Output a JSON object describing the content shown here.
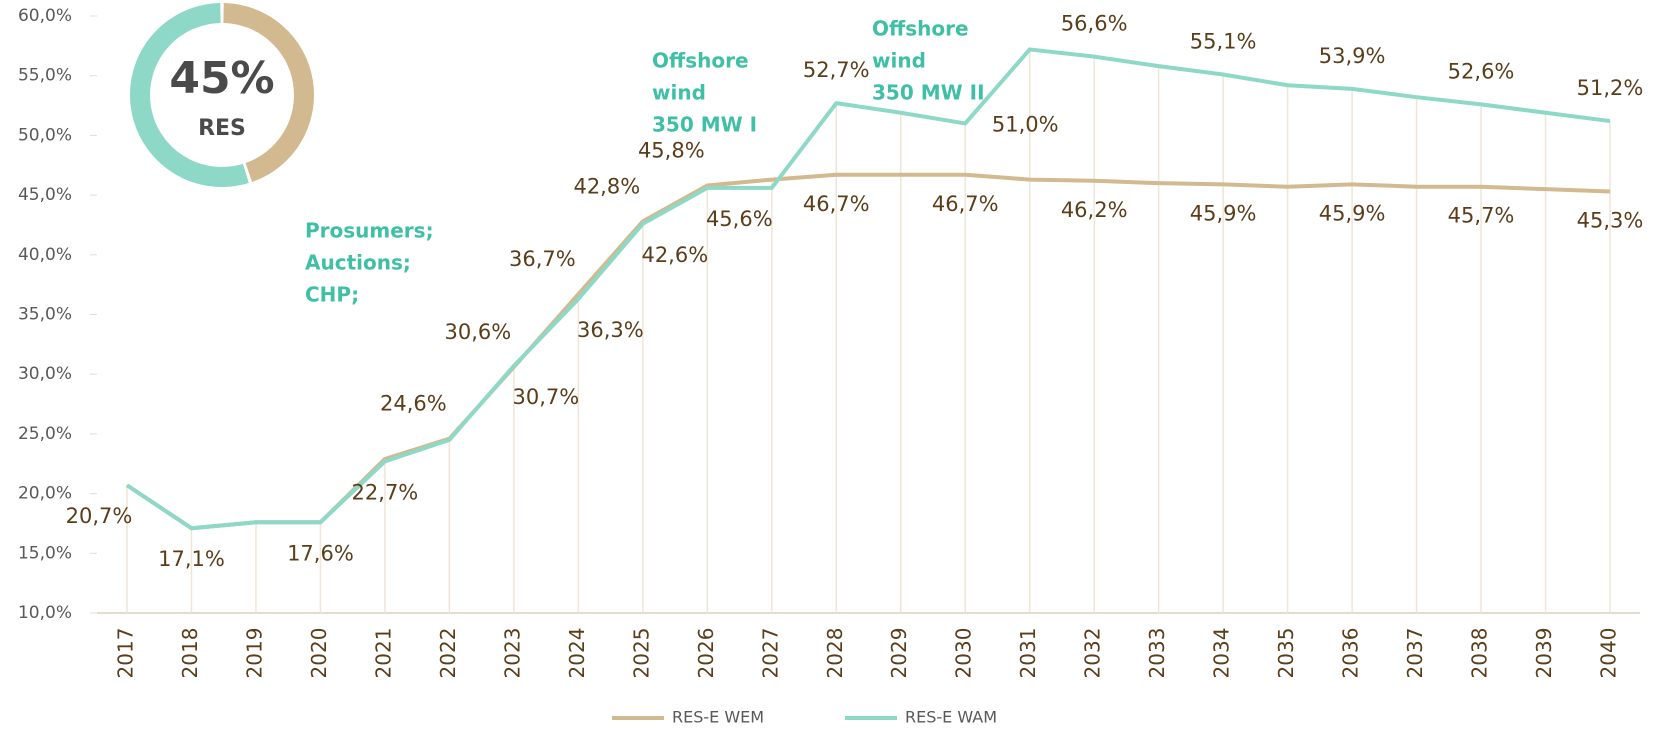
{
  "chart_data": {
    "type": "line",
    "categories": [
      "2017",
      "2018",
      "2019",
      "2020",
      "2021",
      "2022",
      "2023",
      "2024",
      "2025",
      "2026",
      "2027",
      "2028",
      "2029",
      "2030",
      "2031",
      "2032",
      "2033",
      "2034",
      "2035",
      "2036",
      "2037",
      "2038",
      "2039",
      "2040"
    ],
    "series": [
      {
        "name": "RES-E WEM",
        "color": "#d2b98f",
        "values": [
          20.7,
          17.1,
          17.6,
          17.6,
          22.9,
          24.6,
          30.6,
          36.7,
          42.8,
          45.8,
          46.3,
          46.7,
          46.7,
          46.7,
          46.3,
          46.2,
          46.0,
          45.9,
          45.7,
          45.9,
          45.7,
          45.7,
          45.5,
          45.3
        ],
        "value_labels": [
          null,
          null,
          null,
          null,
          null,
          "24,6%",
          "30,6%",
          "36,7%",
          "42,8%",
          "45,8%",
          null,
          "46,7%",
          null,
          "46,7%",
          null,
          "46,2%",
          null,
          "45,9%",
          null,
          "45,9%",
          null,
          "45,7%",
          null,
          "45,3%"
        ]
      },
      {
        "name": "RES-E WAM",
        "color": "#8dd8c6",
        "values": [
          20.7,
          17.1,
          17.6,
          17.6,
          22.7,
          24.5,
          30.7,
          36.3,
          42.6,
          45.6,
          45.6,
          52.7,
          51.9,
          51.0,
          57.2,
          56.6,
          55.8,
          55.1,
          54.2,
          53.9,
          53.2,
          52.6,
          51.9,
          51.2
        ],
        "value_labels": [
          "20,7%",
          "17,1%",
          null,
          "17,6%",
          "22,7%",
          null,
          "30,7%",
          "36,3%",
          "42,6%",
          "45,6%",
          null,
          "52,7%",
          null,
          "51,0%",
          null,
          "56,6%",
          null,
          "55,1%",
          null,
          "53,9%",
          null,
          "52,6%",
          null,
          "51,2%"
        ]
      }
    ],
    "ylim": [
      10,
      60
    ],
    "yticks": [
      {
        "value": 10,
        "label": "10,0%"
      },
      {
        "value": 15,
        "label": "15,0%"
      },
      {
        "value": 20,
        "label": "20,0%"
      },
      {
        "value": 25,
        "label": "25,0%"
      },
      {
        "value": 30,
        "label": "30,0%"
      },
      {
        "value": 35,
        "label": "35,0%"
      },
      {
        "value": 40,
        "label": "40,0%"
      },
      {
        "value": 45,
        "label": "45,0%"
      },
      {
        "value": 50,
        "label": "50,0%"
      },
      {
        "value": 55,
        "label": "55,0%"
      },
      {
        "value": 60,
        "label": "60,0%"
      }
    ],
    "legend": "bottom",
    "annotations": [
      {
        "lines": [
          "Prosumers;",
          "Auctions;",
          "CHP;"
        ]
      },
      {
        "lines": [
          "Offshore",
          "wind",
          "350 MW I"
        ]
      },
      {
        "lines": [
          "Offshore",
          "wind",
          "350 MW II"
        ]
      }
    ],
    "donut": {
      "value": 45,
      "label": "45%",
      "caption": "RES",
      "color": "#d2b98f",
      "rest_color": "#8dd8c6"
    }
  }
}
